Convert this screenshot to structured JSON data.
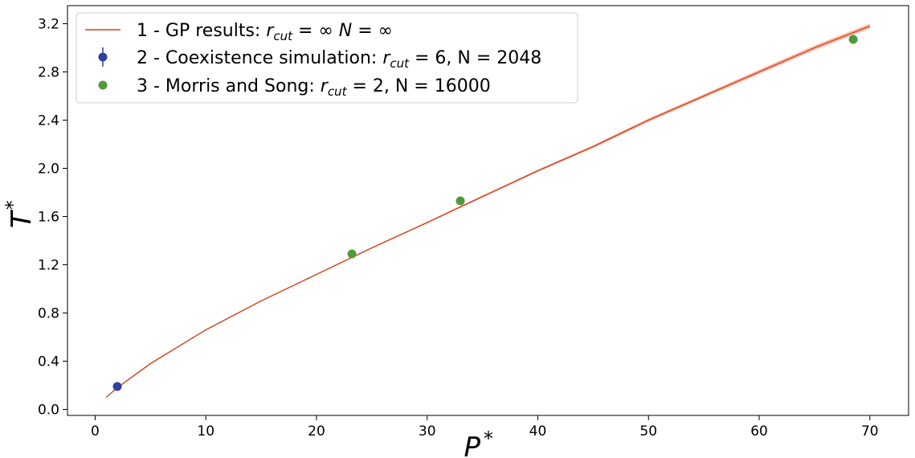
{
  "chart_data": {
    "type": "line",
    "xlabel": "P",
    "xlabel_sup": "*",
    "ylabel": "T",
    "ylabel_sup": "*",
    "xlim": [
      -2.5,
      73.5
    ],
    "ylim": [
      -0.05,
      3.35
    ],
    "xticks": [
      0,
      10,
      20,
      30,
      40,
      50,
      60,
      70
    ],
    "xtick_labels": [
      "0",
      "10",
      "20",
      "30",
      "40",
      "50",
      "60",
      "70"
    ],
    "yticks": [
      0.0,
      0.4,
      0.8,
      1.2,
      1.6,
      2.0,
      2.4,
      2.8,
      3.2
    ],
    "ytick_labels": [
      "0.0",
      "0.4",
      "0.8",
      "1.2",
      "1.6",
      "2.0",
      "2.4",
      "2.8",
      "3.2"
    ],
    "grid": false,
    "legend_position": "top-left",
    "series": [
      {
        "name": "1 - GP results: r_cut = ∞ N = ∞",
        "legend_parts": [
          "1 - GP results: ",
          "r",
          "cut",
          " = ∞ ",
          "N",
          " = ∞"
        ],
        "kind": "line",
        "color": "#d4401f",
        "band_color": "#f3a88f",
        "x": [
          1,
          2,
          5,
          10,
          15,
          20,
          25,
          30,
          33,
          40,
          45,
          50,
          55,
          60,
          65,
          70
        ],
        "y": [
          0.1,
          0.18,
          0.38,
          0.66,
          0.9,
          1.12,
          1.34,
          1.55,
          1.68,
          1.98,
          2.18,
          2.4,
          2.6,
          2.8,
          3.0,
          3.18
        ],
        "band": [
          0.0,
          0.0,
          0.0,
          0.0,
          0.0,
          0.003,
          0.005,
          0.007,
          0.008,
          0.01,
          0.012,
          0.014,
          0.016,
          0.018,
          0.02,
          0.022
        ]
      },
      {
        "name": "2 - Coexistence simulation: r_cut = 6, N = 2048",
        "legend_parts": [
          "2 - Coexistence simulation: ",
          "r",
          "cut",
          " = 6, N = 2048",
          "",
          ""
        ],
        "kind": "errorbar",
        "color": "#3040a0",
        "x": [
          2.0
        ],
        "y": [
          0.19
        ]
      },
      {
        "name": "3 - Morris and Song: r_cut = 2, N = 16000",
        "legend_parts": [
          "3 - Morris and Song: ",
          "r",
          "cut",
          " = 2, N = 16000",
          "",
          ""
        ],
        "kind": "scatter",
        "color": "#4e9a3c",
        "x": [
          23.2,
          33.0,
          68.5
        ],
        "y": [
          1.29,
          1.73,
          3.07
        ]
      }
    ]
  }
}
